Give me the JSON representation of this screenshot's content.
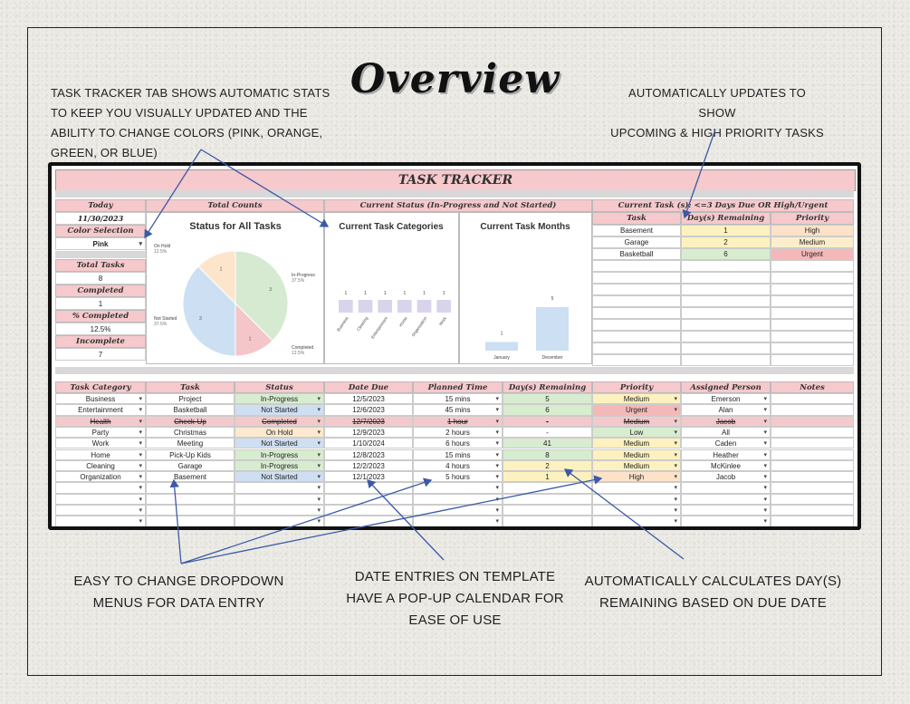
{
  "title": "Overview",
  "notes": {
    "top_left": [
      "TASK TRACKER TAB SHOWS AUTOMATIC STATS",
      "TO KEEP YOU VISUALLY UPDATED AND THE",
      "ABILITY TO CHANGE COLORS (PINK, ORANGE,",
      "GREEN, OR BLUE)"
    ],
    "top_right": [
      "AUTOMATICALLY UPDATES TO SHOW",
      "UPCOMING & HIGH PRIORITY TASKS"
    ],
    "bottom_left": [
      "EASY TO CHANGE DROPDOWN",
      "MENUS FOR DATA ENTRY"
    ],
    "bottom_mid": [
      "DATE ENTRIES ON TEMPLATE",
      "HAVE A POP-UP CALENDAR FOR",
      "EASE OF USE"
    ],
    "bottom_right": [
      "AUTOMATICALLY CALCULATES DAY(S)",
      "REMAINING BASED ON DUE DATE"
    ]
  },
  "sheet": {
    "title": "TASK TRACKER",
    "stats": {
      "today_label": "Today",
      "today": "11/30/2023",
      "color_label": "Color Selection",
      "color": "Pink",
      "total_label": "Total Tasks",
      "total": "8",
      "completed_label": "Completed",
      "completed": "1",
      "pct_label": "% Completed",
      "pct": "12.5%",
      "incomplete_label": "Incomplete",
      "incomplete": "7"
    },
    "total_counts_header": "Total Counts",
    "current_status_header": "Current Status (In-Progress and Not Started)",
    "current_task_header": "Current Task (s): <=3 Days Due OR High/Urgent",
    "current_task_cols": [
      "Task",
      "Day(s) Remaining",
      "Priority"
    ],
    "current_tasks": [
      {
        "task": "Basement",
        "days": "1",
        "priority": "High",
        "pcolor": "#fde2c8",
        "dcolor": "#fdf1bf"
      },
      {
        "task": "Garage",
        "days": "2",
        "priority": "Medium",
        "pcolor": "#fdeecb",
        "dcolor": "#fdf1bf"
      },
      {
        "task": "Basketball",
        "days": "6",
        "priority": "Urgent",
        "pcolor": "#f4b8b8",
        "dcolor": "#d8ecd0"
      }
    ],
    "table_cols": [
      "Task Category",
      "Task",
      "Status",
      "Date Due",
      "Planned Time",
      "Day(s) Remaining",
      "Priority",
      "Assigned Person",
      "Notes"
    ],
    "rows": [
      {
        "cat": "Business",
        "task": "Project",
        "status": "In-Progress",
        "due": "12/5/2023",
        "time": "15 mins",
        "days": "5",
        "priority": "Medium",
        "person": "Emerson"
      },
      {
        "cat": "Entertainment",
        "task": "Basketball",
        "status": "Not Started",
        "due": "12/6/2023",
        "time": "45 mins",
        "days": "6",
        "priority": "Urgent",
        "person": "Alan"
      },
      {
        "cat": "Health",
        "task": "Check-Up",
        "status": "Completed",
        "due": "12/7/2023",
        "time": "1 hour",
        "days": "-",
        "priority": "Medium",
        "person": "Jacob"
      },
      {
        "cat": "Party",
        "task": "Christmas",
        "status": "On Hold",
        "due": "12/9/2023",
        "time": "2 hours",
        "days": "-",
        "priority": "Low",
        "person": "All"
      },
      {
        "cat": "Work",
        "task": "Meeting",
        "status": "Not Started",
        "due": "1/10/2024",
        "time": "6 hours",
        "days": "41",
        "priority": "Medium",
        "person": "Caden"
      },
      {
        "cat": "Home",
        "task": "Pick-Up Kids",
        "status": "In-Progress",
        "due": "12/8/2023",
        "time": "15 mins",
        "days": "8",
        "priority": "Medium",
        "person": "Heather"
      },
      {
        "cat": "Cleaning",
        "task": "Garage",
        "status": "In-Progress",
        "due": "12/2/2023",
        "time": "4 hours",
        "days": "2",
        "priority": "Medium",
        "person": "McKinlee"
      },
      {
        "cat": "Organization",
        "task": "Basement",
        "status": "Not Started",
        "due": "12/1/2023",
        "time": "5 hours",
        "days": "1",
        "priority": "High",
        "person": "Jacob"
      }
    ],
    "colors": {
      "header_pink": "#f6c9cc",
      "in_progress": "#d8ecd0",
      "not_started": "#cfdff2",
      "completed_row": "#f4c9cc",
      "on_hold": "#fde9cf",
      "medium": "#fdf1bf",
      "urgent": "#f4b8b8",
      "high": "#fde2c8",
      "low": "#d8ecd0"
    }
  },
  "chart_data": [
    {
      "type": "pie",
      "title": "Status for All Tasks",
      "slices": [
        {
          "name": "In-Progress",
          "value": 3,
          "percent": "37.5%",
          "color": "#d6ead2"
        },
        {
          "name": "Completed",
          "value": 1,
          "percent": "12.5%",
          "color": "#f4c6c9"
        },
        {
          "name": "Not Started",
          "value": 3,
          "percent": "37.5%",
          "color": "#cddff2"
        },
        {
          "name": "On Hold",
          "value": 1,
          "percent": "12.5%",
          "color": "#fde5cc"
        }
      ]
    },
    {
      "type": "bar",
      "title": "Current Task Categories",
      "categories": [
        "Business",
        "Cleaning",
        "Entertainment",
        "Home",
        "Organization",
        "Work"
      ],
      "values": [
        1,
        1,
        1,
        1,
        1,
        1
      ],
      "color": "#d9d3ec"
    },
    {
      "type": "bar",
      "title": "Current Task Months",
      "categories": [
        "January",
        "December"
      ],
      "values": [
        1,
        5
      ],
      "color": "#cddff2"
    }
  ]
}
